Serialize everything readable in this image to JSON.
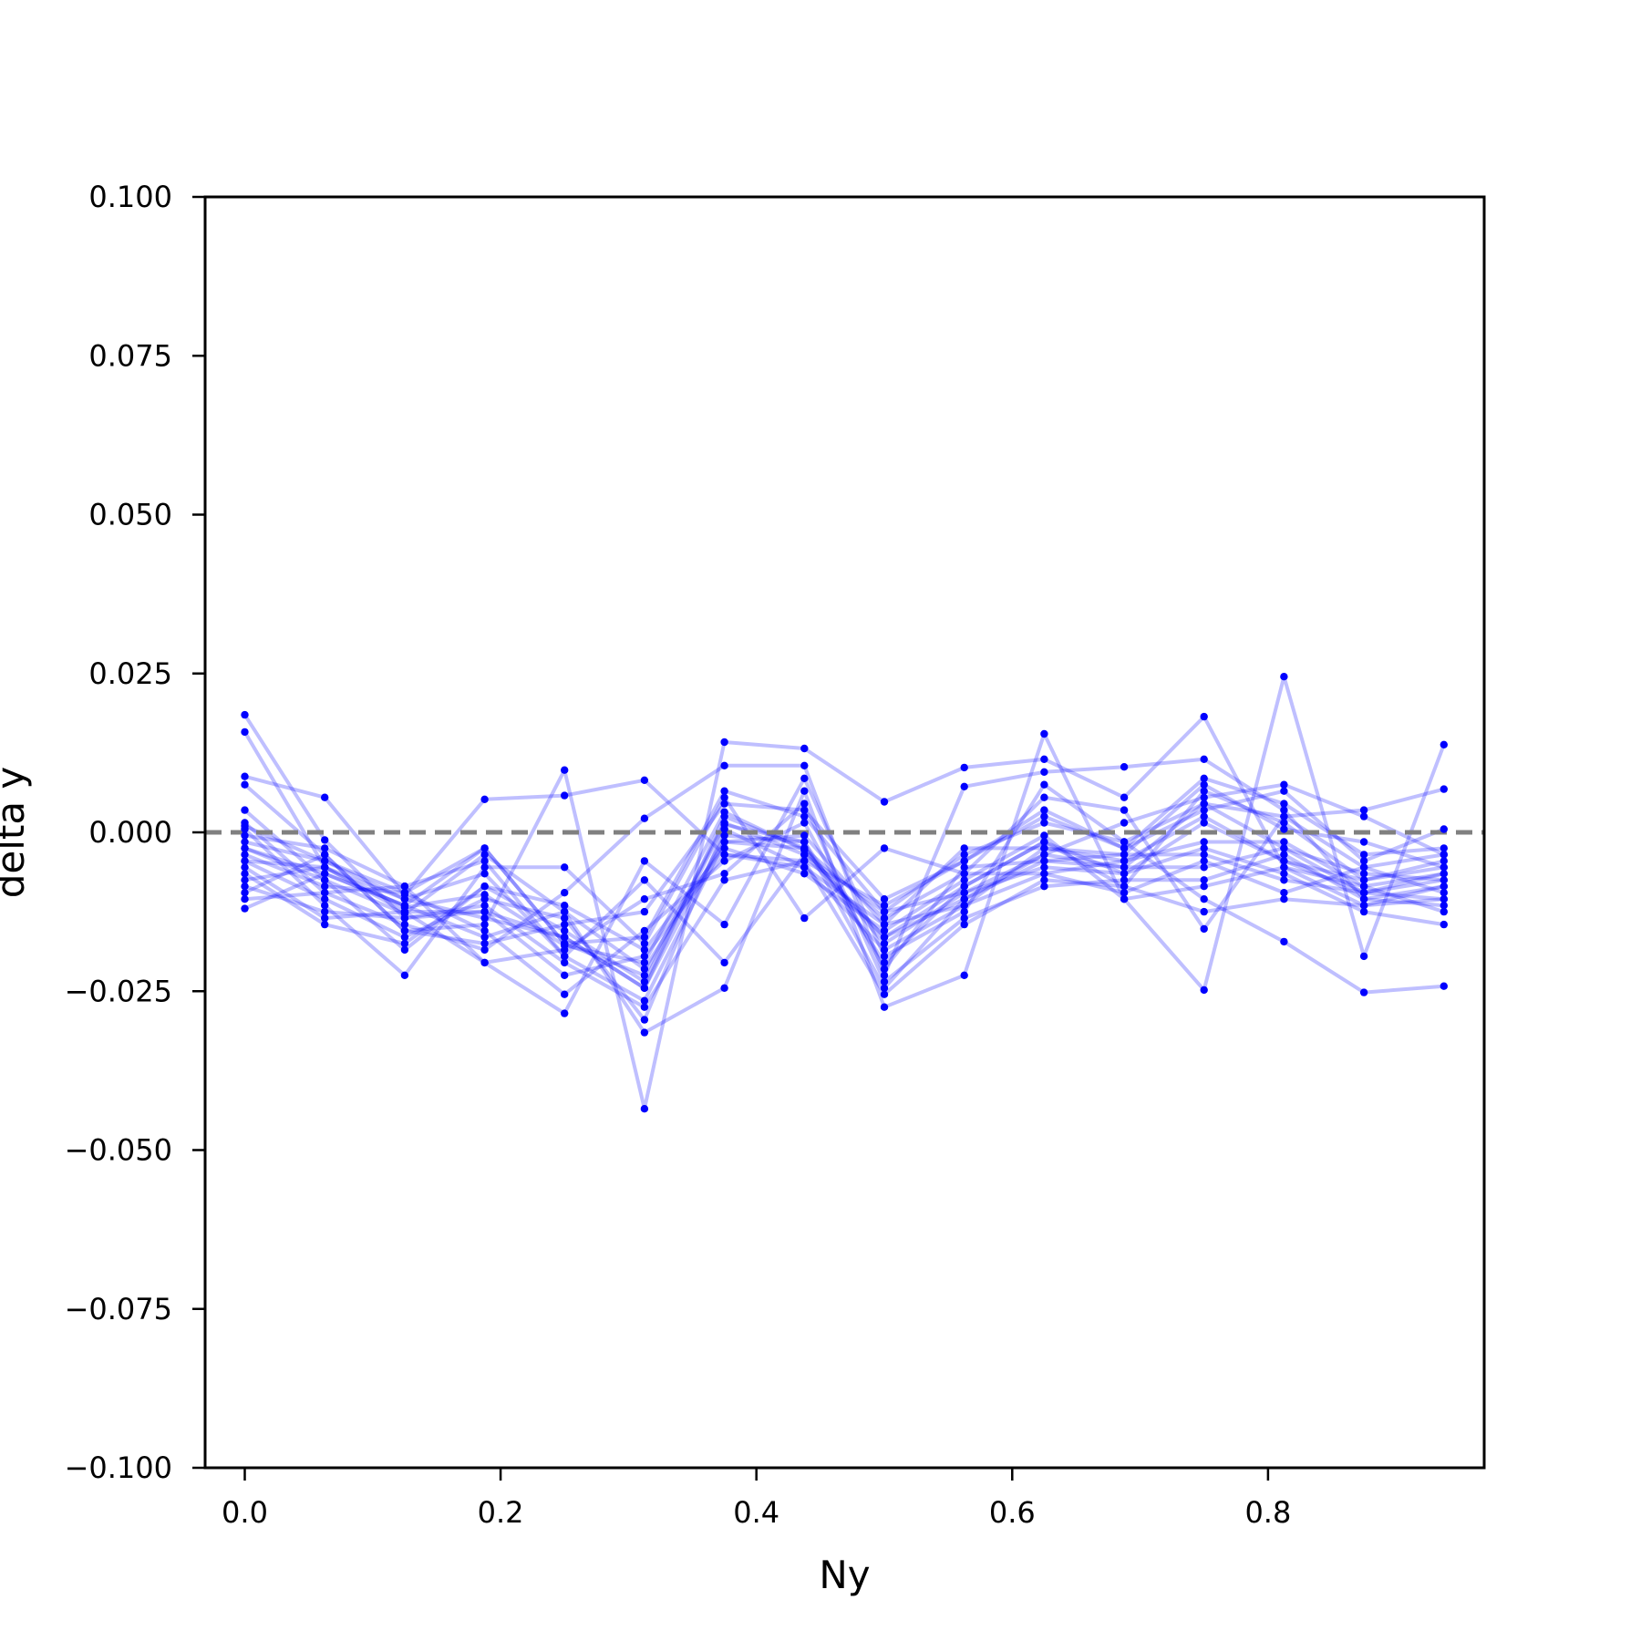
{
  "chart_data": {
    "type": "line",
    "title": "",
    "xlabel": "Ny",
    "ylabel": "delta y",
    "xlim": [
      -0.031,
      0.969
    ],
    "ylim": [
      -0.1,
      0.1
    ],
    "x_ticks": [
      0.0,
      0.2,
      0.4,
      0.6,
      0.8
    ],
    "x_tick_labels": [
      "0.0",
      "0.2",
      "0.4",
      "0.6",
      "0.8"
    ],
    "y_ticks": [
      0.1,
      0.075,
      0.05,
      0.025,
      0.0,
      -0.025,
      -0.05,
      -0.075,
      -0.1
    ],
    "y_tick_labels": [
      "0.100",
      "0.075",
      "0.050",
      "0.025",
      "0.000",
      "−0.025",
      "−0.050",
      "−0.075",
      "−0.100"
    ],
    "reference_line": {
      "y": 0.0,
      "style": "dashed",
      "color": "#808080"
    },
    "series_color": "#0000ff",
    "grid": false,
    "legend": "none",
    "x": [
      0.0,
      0.0625,
      0.125,
      0.1875,
      0.25,
      0.3125,
      0.375,
      0.4375,
      0.5,
      0.5625,
      0.625,
      0.6875,
      0.75,
      0.8125,
      0.875,
      0.9375
    ],
    "series": [
      {
        "values": [
          0.0185,
          -0.0012,
          -0.0135,
          -0.0125,
          -0.0165,
          -0.0245,
          -0.0005,
          -0.0015,
          -0.0245,
          -0.0105,
          -0.0035,
          -0.0055,
          0.0045,
          -0.0025,
          -0.0095,
          -0.0065
        ]
      },
      {
        "values": [
          0.0158,
          -0.0055,
          -0.0118,
          -0.0098,
          -0.0178,
          -0.0205,
          0.0032,
          -0.0028,
          -0.0165,
          -0.0085,
          -0.0015,
          -0.0085,
          0.0065,
          0.0015,
          -0.0075,
          -0.0045
        ]
      },
      {
        "values": [
          0.0088,
          0.0055,
          -0.0098,
          0.0052,
          0.0058,
          0.0082,
          -0.0035,
          -0.0045,
          -0.0115,
          -0.0045,
          0.0035,
          -0.0025,
          0.0085,
          0.0045,
          -0.0035,
          -0.0025
        ]
      },
      {
        "values": [
          0.0075,
          -0.0035,
          -0.0155,
          -0.0145,
          0.0098,
          -0.0435,
          0.0142,
          0.0132,
          0.0048,
          0.0102,
          0.0115,
          0.0055,
          0.0182,
          -0.0055,
          -0.0115,
          -0.0105
        ]
      },
      {
        "values": [
          0.0035,
          -0.0075,
          -0.0128,
          -0.0035,
          -0.0125,
          -0.0315,
          -0.0245,
          0.0065,
          -0.0275,
          -0.0225,
          0.0155,
          -0.0105,
          -0.0248,
          0.0245,
          -0.0195,
          0.0138
        ]
      },
      {
        "values": [
          0.0015,
          -0.0095,
          -0.0145,
          -0.0185,
          -0.0095,
          0.0022,
          0.0105,
          0.0105,
          -0.0225,
          0.0072,
          0.0095,
          0.0103,
          0.0115,
          0.0035,
          -0.0105,
          -0.0085
        ]
      },
      {
        "values": [
          0.0005,
          -0.0115,
          -0.0225,
          -0.0055,
          -0.0055,
          -0.0175,
          0.0055,
          -0.0135,
          -0.0025,
          -0.0065,
          0.0055,
          0.0035,
          -0.0152,
          0.0025,
          0.0035,
          0.0068
        ]
      },
      {
        "values": [
          -0.0005,
          -0.0025,
          -0.0085,
          -0.0205,
          -0.0285,
          -0.0045,
          -0.0145,
          0.0085,
          -0.0195,
          -0.0125,
          0.0075,
          -0.0015,
          -0.0105,
          -0.0172,
          -0.0252,
          -0.0242
        ]
      },
      {
        "values": [
          -0.0015,
          -0.0045,
          -0.0105,
          -0.0065,
          -0.0195,
          -0.0265,
          -0.0015,
          -0.0005,
          -0.0145,
          -0.0025,
          -0.0025,
          -0.0045,
          0.0025,
          -0.0045,
          -0.0095,
          -0.0075
        ]
      },
      {
        "values": [
          -0.0025,
          -0.0065,
          -0.0115,
          -0.0025,
          -0.0175,
          -0.0225,
          0.0015,
          -0.0035,
          -0.0125,
          -0.0095,
          -0.0055,
          -0.0065,
          -0.0025,
          -0.0065,
          -0.0125,
          -0.0145
        ]
      },
      {
        "values": [
          -0.0035,
          -0.0085,
          -0.0095,
          -0.0155,
          -0.0255,
          -0.0155,
          -0.0045,
          0.0015,
          -0.0215,
          -0.0055,
          -0.0045,
          -0.0035,
          0.0075,
          0.0005,
          -0.0015,
          -0.0055
        ]
      },
      {
        "values": [
          -0.0045,
          -0.0105,
          -0.0165,
          -0.0105,
          -0.0135,
          -0.0295,
          0.0005,
          -0.0055,
          -0.0185,
          -0.0115,
          -0.0065,
          -0.0095,
          -0.0045,
          -0.0095,
          -0.0055,
          -0.0095
        ]
      },
      {
        "values": [
          -0.0055,
          -0.0135,
          -0.0125,
          -0.0205,
          -0.0185,
          -0.0105,
          -0.0065,
          0.0045,
          -0.0235,
          -0.0135,
          -0.0085,
          -0.0075,
          -0.0075,
          -0.0035,
          -0.0105,
          -0.0115
        ]
      },
      {
        "values": [
          -0.0065,
          -0.0145,
          -0.0175,
          -0.0085,
          -0.0115,
          -0.0185,
          -0.0025,
          -0.0065,
          -0.0155,
          -0.0075,
          -0.0005,
          -0.0105,
          -0.0085,
          -0.0055,
          -0.0085,
          -0.0125
        ]
      },
      {
        "values": [
          -0.0075,
          -0.0055,
          -0.0105,
          -0.0135,
          -0.0165,
          -0.0245,
          0.0025,
          -0.0025,
          -0.0175,
          -0.0095,
          -0.0035,
          0.0015,
          0.0055,
          0.0075,
          0.0025,
          -0.0035
        ]
      },
      {
        "values": [
          -0.0085,
          -0.0125,
          -0.0135,
          -0.0115,
          -0.0205,
          -0.0275,
          -0.0075,
          -0.0045,
          -0.0255,
          -0.0145,
          -0.0075,
          -0.0085,
          -0.0125,
          -0.0105,
          -0.0115,
          -0.0085
        ]
      },
      {
        "values": [
          -0.0095,
          -0.0035,
          -0.0155,
          -0.0175,
          -0.0145,
          -0.0125,
          0.0045,
          0.0035,
          -0.0105,
          -0.0045,
          0.0025,
          -0.0025,
          0.0035,
          0.0065,
          -0.0045,
          0.0005
        ]
      },
      {
        "values": [
          -0.0105,
          -0.0095,
          -0.0085,
          -0.0045,
          -0.0195,
          -0.0075,
          -0.0205,
          -0.0035,
          -0.0165,
          -0.0105,
          -0.0045,
          -0.0055,
          -0.0055,
          -0.0025,
          -0.0065,
          -0.0075
        ]
      },
      {
        "values": [
          -0.012,
          -0.0065,
          -0.0115,
          -0.0165,
          -0.0125,
          -0.0215,
          -0.0015,
          -0.0025,
          -0.0135,
          -0.0065,
          -0.0065,
          -0.0045,
          -0.0015,
          -0.0015,
          -0.0085,
          -0.0065
        ]
      },
      {
        "values": [
          -0.0025,
          -0.0075,
          -0.0185,
          -0.0085,
          -0.0155,
          -0.0235,
          0.0012,
          -0.0015,
          -0.0205,
          -0.0085,
          -0.0015,
          -0.0065,
          0.0015,
          -0.0045,
          -0.0075,
          -0.0055
        ]
      },
      {
        "values": [
          -0.0045,
          -0.0055,
          -0.0125,
          -0.0125,
          -0.0225,
          -0.0195,
          -0.0035,
          -0.0055,
          -0.0145,
          -0.0115,
          -0.0025,
          -0.0035,
          -0.0035,
          -0.0075,
          -0.0095,
          -0.0105
        ]
      },
      {
        "values": [
          0.001,
          -0.0045,
          -0.0095,
          -0.0025,
          -0.0175,
          -0.0165,
          0.0065,
          0.0025,
          -0.0125,
          -0.0035,
          0.0015,
          -0.0015,
          0.0045,
          0.0025,
          -0.0055,
          -0.0035
        ]
      }
    ]
  }
}
